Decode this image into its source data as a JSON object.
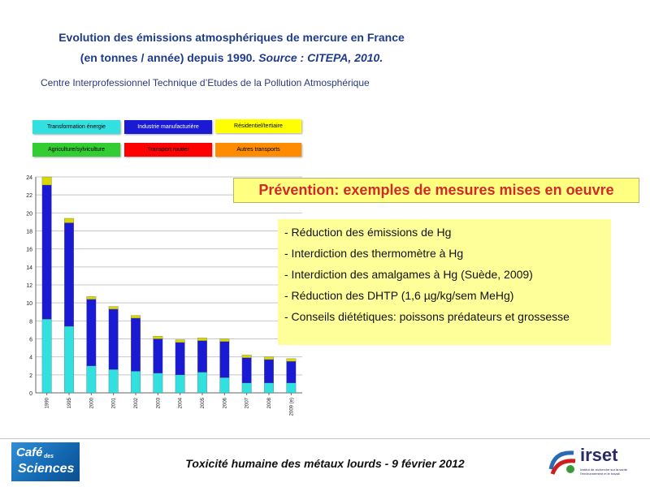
{
  "title": {
    "line1": "Evolution des émissions atmosphériques de mercure en France",
    "line2_main": "(en tonnes / année) depuis 1990.",
    "line2_source": "Source : CITEPA, 2010.",
    "org": "Centre Interprofessionnel Technique d’Etudes de la Pollution Atmosphérique"
  },
  "legend": [
    {
      "label": "Transformation énergie",
      "color": "#33e0e0"
    },
    {
      "label": "Industrie manufacturière",
      "color": "#1a1ad4"
    },
    {
      "label": "Résidentiel/tertiaire",
      "color": "#ffff00"
    },
    {
      "label": "Agriculture/sylviculture",
      "color": "#33cc33"
    },
    {
      "label": "Transport routier",
      "color": "#ff0000"
    },
    {
      "label": "Autres transports",
      "color": "#ff8c00"
    }
  ],
  "chart_data": {
    "type": "bar",
    "stacked": true,
    "categories": [
      "1990",
      "1995",
      "2000",
      "2001",
      "2002",
      "2003",
      "2004",
      "2005",
      "2006",
      "2007",
      "2008",
      "2009 (e)"
    ],
    "series": [
      {
        "name": "Transformation énergie",
        "color": "#33e0e0",
        "values": [
          8.2,
          7.4,
          3.0,
          2.6,
          2.4,
          2.2,
          2.0,
          2.3,
          1.7,
          1.1,
          1.1,
          1.1
        ]
      },
      {
        "name": "Industrie manufacturière",
        "color": "#1a1ad4",
        "values": [
          14.9,
          11.5,
          7.4,
          6.7,
          5.9,
          3.8,
          3.6,
          3.5,
          4.0,
          2.8,
          2.6,
          2.4
        ]
      },
      {
        "name": "Résidentiel/tertiaire",
        "color": "#d9d900",
        "values": [
          0.9,
          0.5,
          0.3,
          0.3,
          0.3,
          0.3,
          0.3,
          0.3,
          0.3,
          0.3,
          0.3,
          0.3
        ]
      },
      {
        "name": "Agriculture/sylviculture",
        "color": "#33cc33",
        "values": [
          0,
          0,
          0,
          0,
          0,
          0,
          0,
          0,
          0,
          0,
          0,
          0
        ]
      },
      {
        "name": "Transport routier",
        "color": "#ff0000",
        "values": [
          0,
          0,
          0,
          0,
          0,
          0,
          0,
          0,
          0,
          0,
          0,
          0
        ]
      },
      {
        "name": "Autres transports",
        "color": "#ff8c00",
        "values": [
          0,
          0,
          0,
          0,
          0,
          0,
          0,
          0,
          0,
          0,
          0,
          0
        ]
      }
    ],
    "yticks": [
      0,
      2,
      4,
      6,
      8,
      10,
      12,
      14,
      16,
      18,
      20,
      22,
      24
    ],
    "ylim": [
      0,
      24
    ],
    "grid": true
  },
  "prevention": {
    "title": "Prévention: exemples de mesures mises en oeuvre",
    "items": [
      "- Réduction des émissions de Hg",
      "- Interdiction des thermomètre à Hg",
      "- Interdiction des amalgames à Hg (Suède, 2009)",
      "- Réduction des DHTP (1,6 µg/kg/sem MeHg)",
      "- Conseils diététiques: poissons prédateurs et grossesse"
    ]
  },
  "footer": {
    "text": "Toxicité humaine des métaux lourds - 9 février 2012",
    "logo_left": {
      "l1": "Café",
      "l2": "des",
      "l3": "Sciences"
    },
    "logo_right": {
      "name": "irset",
      "sub": "Institut de recherche sur la santé l'environnement et le travail"
    }
  }
}
